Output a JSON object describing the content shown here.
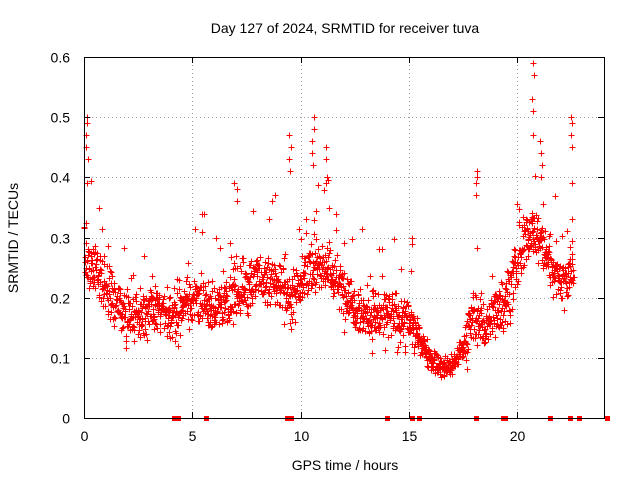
{
  "chart_data": {
    "type": "scatter",
    "title": "Day 127 of 2024, SRMTID for receiver tuva",
    "xlabel": "GPS time / hours",
    "ylabel": "SRMTID / TECUs",
    "xlim": [
      0,
      24
    ],
    "ylim": [
      0,
      0.6
    ],
    "xticks": [
      0,
      5,
      10,
      15,
      20
    ],
    "xtick_labels": [
      "0",
      "5",
      "10",
      "15",
      "20"
    ],
    "yticks": [
      0,
      0.1,
      0.2,
      0.3,
      0.4,
      0.5,
      0.6
    ],
    "ytick_labels": [
      "0",
      "0.1",
      "0.2",
      "0.3",
      "0.4",
      "0.5",
      "0.6"
    ],
    "grid": true,
    "marker": "plus",
    "color": "#ff0000",
    "trend_hours": [
      0.0,
      0.2,
      0.5,
      1.0,
      1.5,
      2.0,
      3.0,
      4.0,
      5.0,
      6.0,
      7.0,
      8.0,
      9.0,
      9.5,
      10.0,
      11.0,
      12.0,
      13.0,
      14.0,
      15.0,
      15.5,
      16.0,
      16.5,
      17.0,
      17.5,
      18.0,
      18.5,
      19.0,
      19.5,
      20.0,
      20.5,
      21.0,
      21.5,
      22.0,
      22.5
    ],
    "trend_values": [
      0.27,
      0.25,
      0.26,
      0.22,
      0.19,
      0.17,
      0.18,
      0.17,
      0.2,
      0.18,
      0.21,
      0.23,
      0.22,
      0.2,
      0.23,
      0.26,
      0.21,
      0.17,
      0.17,
      0.16,
      0.13,
      0.1,
      0.08,
      0.09,
      0.12,
      0.17,
      0.15,
      0.18,
      0.2,
      0.25,
      0.31,
      0.3,
      0.26,
      0.23,
      0.24
    ],
    "spikes": [
      {
        "x": 0.15,
        "values": [
          0.5,
          0.49,
          0.47,
          0.45,
          0.43,
          0.39
        ]
      },
      {
        "x": 7.0,
        "values": [
          0.39,
          0.38,
          0.36
        ]
      },
      {
        "x": 8.75,
        "values": [
          0.37,
          0.36
        ]
      },
      {
        "x": 9.5,
        "values": [
          0.47,
          0.45,
          0.43,
          0.41
        ]
      },
      {
        "x": 10.6,
        "values": [
          0.5,
          0.48,
          0.46,
          0.44,
          0.42
        ]
      },
      {
        "x": 11.2,
        "values": [
          0.45,
          0.43,
          0.4,
          0.39
        ]
      },
      {
        "x": 15.1,
        "values": [
          0.3,
          0.29
        ]
      },
      {
        "x": 18.1,
        "values": [
          0.41,
          0.4,
          0.39,
          0.37
        ]
      },
      {
        "x": 20.7,
        "values": [
          0.59,
          0.57,
          0.53,
          0.51,
          0.47
        ]
      },
      {
        "x": 21.1,
        "values": [
          0.46,
          0.44,
          0.42,
          0.4
        ]
      },
      {
        "x": 22.5,
        "values": [
          0.5,
          0.49,
          0.47,
          0.45,
          0.39,
          0.33
        ]
      }
    ],
    "dropouts_at_zero": [
      4.15,
      4.35,
      5.65,
      9.35,
      9.55,
      14.0,
      15.15,
      15.45,
      18.1,
      19.35,
      19.45,
      24.15,
      21.5,
      22.45,
      22.85
    ]
  }
}
